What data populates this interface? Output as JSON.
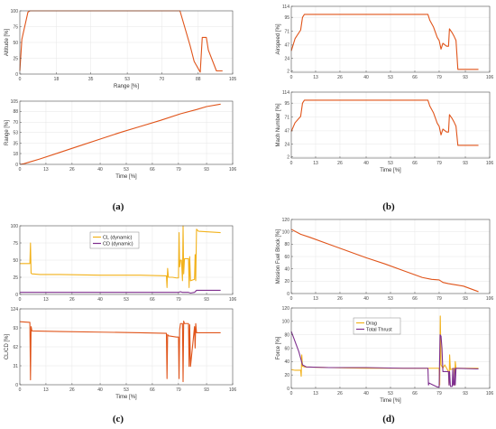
{
  "captions": [
    "(a)",
    "(b)",
    "(c)",
    "(d)"
  ],
  "colors": {
    "orange": "#E0541A",
    "yellow": "#F2B21C",
    "purple": "#7E2F8E",
    "grid": "#E6E6E6",
    "axis": "#555555"
  },
  "chart_data": [
    {
      "id": "a-top",
      "type": "line",
      "title": "",
      "xlabel": "Range [%]",
      "ylabel": "Altitude [%]",
      "xlim": [
        0,
        105
      ],
      "ylim": [
        0,
        100
      ],
      "xticks": [
        0,
        18,
        35,
        53,
        70,
        88,
        105
      ],
      "yticks": [
        0,
        25,
        50,
        75,
        100
      ],
      "grid": true,
      "legend": null,
      "series": [
        {
          "name": "",
          "color": "#E0541A",
          "x": [
            0,
            1,
            4,
            5,
            20,
            40,
            60,
            79,
            84,
            86,
            89,
            90,
            92,
            93,
            97,
            100
          ],
          "y": [
            5,
            55,
            98,
            100,
            100,
            100,
            100,
            100,
            45,
            20,
            3,
            58,
            58,
            38,
            5,
            5
          ]
        }
      ]
    },
    {
      "id": "a-bottom",
      "type": "line",
      "title": "",
      "xlabel": "Time [%]",
      "ylabel": "Range [%]",
      "xlim": [
        0,
        106
      ],
      "ylim": [
        0,
        105
      ],
      "xticks": [
        0,
        13,
        26,
        40,
        53,
        66,
        79,
        93,
        106
      ],
      "yticks": [
        0,
        18,
        35,
        53,
        70,
        88,
        105
      ],
      "grid": true,
      "legend": null,
      "series": [
        {
          "name": "",
          "color": "#E0541A",
          "x": [
            0,
            2,
            5,
            10,
            20,
            30,
            40,
            50,
            60,
            70,
            80,
            88,
            93,
            100
          ],
          "y": [
            0,
            1,
            4,
            9,
            20,
            31,
            42,
            53,
            63,
            73,
            84,
            91,
            96,
            100
          ]
        }
      ]
    },
    {
      "id": "b-top",
      "type": "line",
      "title": "",
      "xlabel": "",
      "ylabel": "Airspeed [%]",
      "xlim": [
        0,
        106
      ],
      "ylim": [
        0,
        114
      ],
      "xticks": [
        0,
        13,
        26,
        40,
        53,
        66,
        79,
        93,
        106
      ],
      "yticks": [
        2,
        24,
        47,
        71,
        95,
        114
      ],
      "grid": true,
      "legend": null,
      "series": [
        {
          "name": "",
          "color": "#E0541A",
          "x": [
            0,
            2,
            5,
            6,
            7,
            8,
            20,
            40,
            60,
            73,
            74,
            76,
            78,
            79,
            80,
            81,
            83,
            84,
            84.5,
            86,
            87,
            88,
            89,
            90,
            100
          ],
          "y": [
            37,
            58,
            73,
            95,
            100,
            100,
            100,
            100,
            100,
            100,
            90,
            78,
            60,
            55,
            40,
            50,
            45,
            45,
            75,
            68,
            62,
            55,
            5,
            5,
            5
          ]
        }
      ]
    },
    {
      "id": "b-bottom",
      "type": "line",
      "title": "",
      "xlabel": "Time [%]",
      "ylabel": "Mach Number [%]",
      "xlim": [
        0,
        106
      ],
      "ylim": [
        0,
        114
      ],
      "xticks": [
        0,
        13,
        26,
        40,
        53,
        66,
        79,
        93,
        106
      ],
      "yticks": [
        2,
        24,
        47,
        71,
        95,
        114
      ],
      "grid": true,
      "legend": null,
      "series": [
        {
          "name": "",
          "color": "#E0541A",
          "x": [
            0,
            2,
            5,
            6,
            7,
            8,
            20,
            40,
            60,
            73,
            74,
            76,
            78,
            79,
            80,
            81,
            83,
            84,
            84.5,
            86,
            87,
            88,
            89,
            90,
            100
          ],
          "y": [
            46,
            61,
            72,
            95,
            100,
            100,
            100,
            100,
            100,
            100,
            90,
            78,
            60,
            55,
            40,
            50,
            45,
            45,
            75,
            68,
            62,
            55,
            22,
            22,
            22
          ]
        }
      ]
    },
    {
      "id": "c-top",
      "type": "line",
      "title": "",
      "xlabel": "",
      "ylabel": "",
      "xlim": [
        0,
        106
      ],
      "ylim": [
        0,
        100
      ],
      "xticks": [
        0,
        13,
        26,
        40,
        53,
        66,
        79,
        93,
        106
      ],
      "yticks": [
        0,
        25,
        50,
        75,
        100
      ],
      "grid": true,
      "legend": "top-center",
      "series": [
        {
          "name": "CL (dynamic)",
          "color": "#F2B21C",
          "x": [
            0,
            5,
            5.3,
            5.6,
            6,
            10,
            20,
            40,
            60,
            73,
            73.3,
            73.6,
            74,
            76,
            78,
            79,
            79.3,
            79.6,
            80,
            80.5,
            81,
            81.3,
            81.6,
            82,
            84,
            84.3,
            84.6,
            85,
            87,
            87.3,
            87.6,
            88,
            89,
            100
          ],
          "y": [
            45,
            45,
            75,
            31,
            30,
            29,
            29,
            28,
            28,
            27,
            10,
            38,
            25,
            25,
            24,
            24,
            90,
            40,
            50,
            50,
            20,
            100,
            30,
            52,
            52,
            10,
            55,
            20,
            22,
            58,
            20,
            95,
            92,
            90
          ]
        },
        {
          "name": "CD (dynamic)",
          "color": "#7E2F8E",
          "x": [
            0,
            5,
            6,
            20,
            40,
            60,
            78,
            79,
            80,
            81,
            84,
            85,
            87,
            88,
            100
          ],
          "y": [
            3,
            3,
            3,
            3,
            3,
            3,
            3,
            3,
            4,
            3,
            3,
            2,
            3,
            6,
            6
          ]
        }
      ]
    },
    {
      "id": "c-bottom",
      "type": "line",
      "title": "",
      "xlabel": "Time [%]",
      "ylabel": "CL/CD [%]",
      "xlim": [
        0,
        106
      ],
      "ylim": [
        0,
        124
      ],
      "xticks": [
        0,
        13,
        26,
        40,
        53,
        66,
        79,
        93,
        106
      ],
      "yticks": [
        0,
        31,
        62,
        93,
        124
      ],
      "grid": true,
      "legend": null,
      "series": [
        {
          "name": "",
          "color": "#E0541A",
          "x": [
            0,
            5,
            5.3,
            5.6,
            6,
            20,
            40,
            60,
            73,
            73.3,
            73.6,
            74,
            78,
            79,
            79.3,
            79.6,
            80,
            81,
            81.3,
            81.6,
            82,
            84,
            84.3,
            84.6,
            85,
            87,
            87.3,
            87.6,
            88,
            100
          ],
          "y": [
            103,
            102,
            8,
            95,
            88,
            87,
            86,
            85,
            84,
            10,
            82,
            80,
            78,
            78,
            10,
            90,
            100,
            100,
            5,
            104,
            100,
            100,
            30,
            98,
            30,
            95,
            60,
            100,
            85,
            85
          ]
        }
      ]
    },
    {
      "id": "d-top",
      "type": "line",
      "title": "",
      "xlabel": "",
      "ylabel": "Mission Fuel Block [%]",
      "xlim": [
        0,
        106
      ],
      "ylim": [
        0,
        120
      ],
      "xticks": [
        0,
        13,
        26,
        40,
        53,
        66,
        79,
        93,
        106
      ],
      "yticks": [
        0,
        20,
        40,
        60,
        80,
        100,
        120
      ],
      "grid": true,
      "legend": null,
      "series": [
        {
          "name": "",
          "color": "#E0541A",
          "x": [
            0,
            5,
            10,
            20,
            30,
            40,
            50,
            60,
            70,
            75,
            79,
            81,
            84,
            88,
            92,
            100
          ],
          "y": [
            104,
            96,
            91,
            80,
            69,
            58,
            48,
            37,
            26,
            23,
            22,
            18,
            16,
            14,
            12,
            3
          ]
        }
      ]
    },
    {
      "id": "d-bottom",
      "type": "line",
      "title": "",
      "xlabel": "Time [%]",
      "ylabel": "Force [%]",
      "xlim": [
        0,
        106
      ],
      "ylim": [
        0,
        120
      ],
      "xticks": [
        0,
        13,
        26,
        40,
        53,
        66,
        79,
        93,
        106
      ],
      "yticks": [
        0,
        20,
        40,
        60,
        80,
        100,
        120
      ],
      "grid": true,
      "legend": "top-center",
      "series": [
        {
          "name": "Drag",
          "color": "#F2B21C",
          "x": [
            0,
            2,
            5,
            5.3,
            5.6,
            6,
            7,
            20,
            40,
            60,
            73,
            74,
            79,
            79.3,
            79.6,
            80,
            81,
            82,
            84,
            84.3,
            84.6,
            85,
            87,
            87.3,
            87.6,
            88,
            100
          ],
          "y": [
            28,
            27,
            27,
            18,
            50,
            33,
            32,
            31,
            30,
            30,
            30,
            30,
            30,
            5,
            108,
            35,
            30,
            35,
            25,
            5,
            50,
            28,
            30,
            5,
            40,
            30,
            30
          ]
        },
        {
          "name": "Total Thrust",
          "color": "#7E2F8E",
          "x": [
            0,
            2,
            4,
            6,
            8,
            20,
            40,
            60,
            73,
            73.3,
            73.6,
            78,
            79,
            79.5,
            80,
            80.5,
            81,
            81.5,
            82,
            84,
            84.3,
            84.6,
            85,
            86,
            86.3,
            86.6,
            87,
            87.3,
            87.6,
            88,
            100
          ],
          "y": [
            85,
            70,
            55,
            35,
            32,
            31,
            31,
            30,
            30,
            5,
            8,
            2,
            2,
            80,
            78,
            60,
            25,
            25,
            25,
            25,
            5,
            25,
            3,
            3,
            30,
            5,
            5,
            30,
            5,
            30,
            29
          ]
        }
      ]
    }
  ]
}
